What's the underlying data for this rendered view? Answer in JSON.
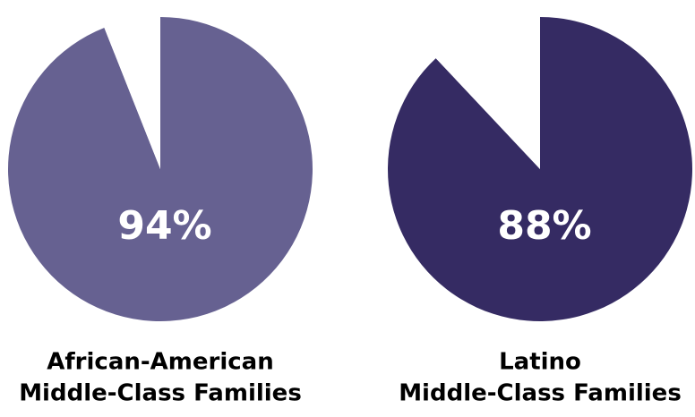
{
  "chart_data": [
    {
      "type": "pie",
      "title": [
        "African-American",
        "Middle-Class Families"
      ],
      "values": [
        94,
        6
      ],
      "value_labels": [
        "94%",
        null
      ],
      "colors": [
        "#666191",
        "#ffffff"
      ]
    },
    {
      "type": "pie",
      "title": [
        "Latino",
        "Middle-Class Families"
      ],
      "values": [
        88,
        12
      ],
      "value_labels": [
        "88%",
        null
      ],
      "colors": [
        "#352b63",
        "#ffffff"
      ]
    }
  ]
}
